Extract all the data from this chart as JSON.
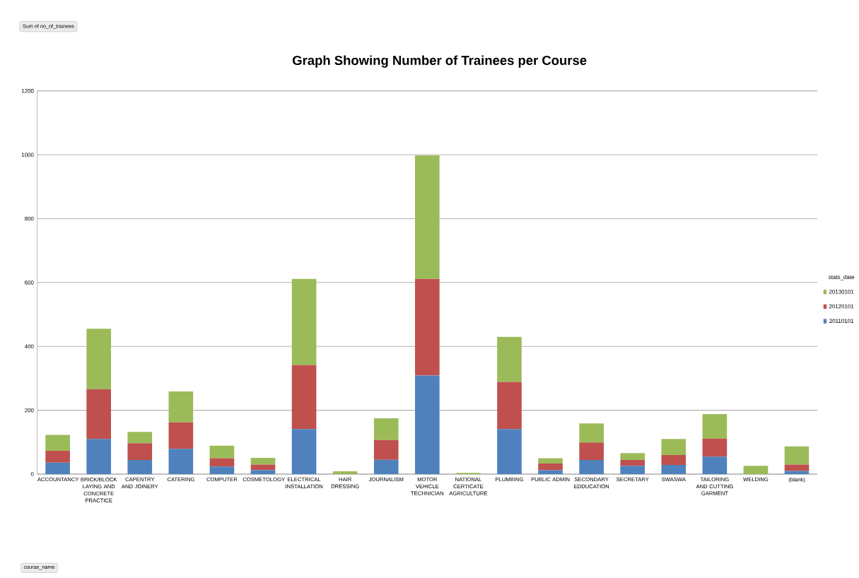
{
  "chart_data": {
    "type": "bar",
    "stacked": true,
    "title": "Graph Showing Number of Trainees per Course",
    "categories": [
      "ACCOUNTANCY",
      "BRICK/BLOCK LAYING AND CONCRETE PRACTICE",
      "CAPENTRY AND JOINERY",
      "CATERING",
      "COMPUTER",
      "COSMETOLOGY",
      "ELECTRICAL INSTALLATION",
      "HAIR DRESSING",
      "JOURNALISM",
      "MOTOR VEHICLE TECHNICIAN",
      "NATIONAL CERTICATE AGRICULTURE",
      "PLUMBING",
      "PUBLIC ADMIN",
      "SECONDARY EDDUCATION",
      "SECRETARY",
      "SWASWA",
      "TAILORING AND CUTTING GARMENT",
      "WELDING",
      "(blank)"
    ],
    "series": [
      {
        "name": "20110101",
        "color": "#4f81bd",
        "values": [
          36,
          110,
          44,
          79,
          24,
          13,
          141,
          0,
          45,
          309,
          0,
          141,
          12,
          44,
          26,
          29,
          55,
          0,
          10
        ]
      },
      {
        "name": "20120101",
        "color": "#c0504d",
        "values": [
          37,
          156,
          53,
          83,
          26,
          17,
          201,
          0,
          62,
          302,
          0,
          148,
          21,
          55,
          18,
          31,
          56,
          0,
          20
        ]
      },
      {
        "name": "20130101",
        "color": "#9bbb59",
        "values": [
          50,
          189,
          35,
          97,
          39,
          21,
          269,
          9,
          68,
          387,
          4,
          141,
          17,
          60,
          22,
          50,
          77,
          26,
          57
        ]
      }
    ],
    "ylim": [
      0,
      1200
    ],
    "yticks": [
      0,
      200,
      400,
      600,
      800,
      1000,
      1200
    ],
    "grid": "y",
    "legend": "right",
    "legend_title": "stats_date",
    "annotations": [
      "Sum of no_of_trainees",
      "course_name"
    ]
  }
}
